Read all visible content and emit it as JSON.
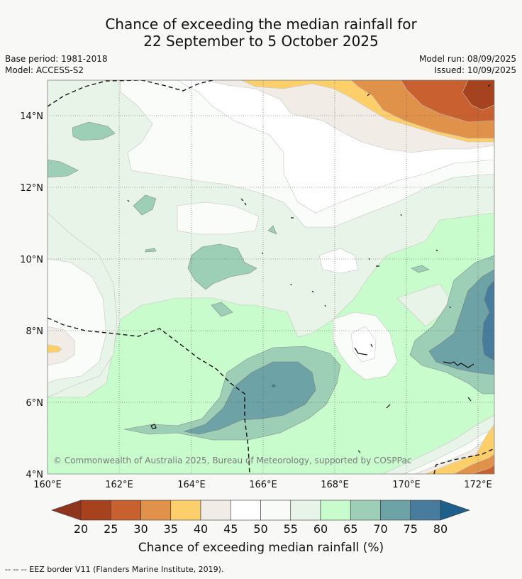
{
  "title": {
    "line1": "Chance of exceeding the median rainfall for",
    "line2": "22 September to 5 October 2025"
  },
  "meta": {
    "base_period": "Base period: 1981-2018",
    "model": "Model: ACCESS-S2",
    "model_run": "Model run: 08/09/2025",
    "issued": "Issued: 10/09/2025"
  },
  "map": {
    "lon_labels": [
      "160°E",
      "162°E",
      "164°E",
      "166°E",
      "168°E",
      "170°E",
      "172°E"
    ],
    "lat_labels": [
      "14°N",
      "12°N",
      "10°N",
      "8°N",
      "6°N",
      "4°N"
    ],
    "copyright": "© Commonwealth of Australia 2025, Bureau of Meteorology, supported by COSPPac"
  },
  "colorbar": {
    "ticks": [
      "20",
      "25",
      "30",
      "35",
      "40",
      "45",
      "50",
      "55",
      "60",
      "65",
      "70",
      "75",
      "80"
    ],
    "colors": [
      "#a7421f",
      "#c8602f",
      "#e0924a",
      "#fdcf6b",
      "#f1ece6",
      "#ffffff",
      "#f9fbf8",
      "#e8f4e8",
      "#c9fccc",
      "#9ccfb6",
      "#6da3a6",
      "#477c9c"
    ],
    "low_color": "#8f351e",
    "high_color": "#1f5f8b",
    "title": "Chance of exceeding median rainfall (%)"
  },
  "footnote": "--  --  -- EEZ border V11 (Flanders Marine Institute, 2019)."
}
